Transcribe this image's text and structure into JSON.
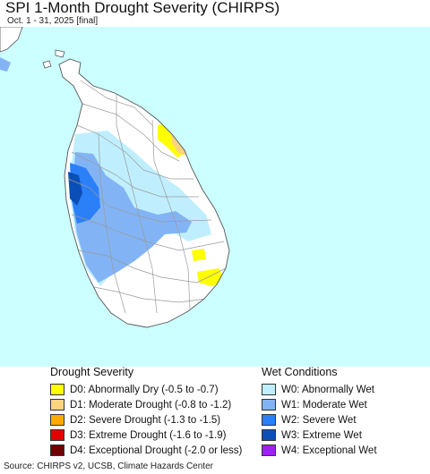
{
  "title": "SPI 1-Month Drought Severity (CHIRPS)",
  "subtitle": "Oct. 1 - 31, 2025 [final]",
  "colors": {
    "ocean": "#ccffff",
    "land": "#ffffff",
    "district_border": "#9a9a9a",
    "coast": "#555555"
  },
  "legend": {
    "drought": {
      "title": "Drought Severity",
      "items": [
        {
          "label": "D0: Abnormally Dry (-0.5 to -0.7)",
          "color": "#ffff00"
        },
        {
          "label": "D1: Moderate Drought (-0.8 to -1.2)",
          "color": "#fcd37f"
        },
        {
          "label": "D2: Severe Drought (-1.3 to -1.5)",
          "color": "#ffaa00"
        },
        {
          "label": "D3: Extreme Drought (-1.6 to -1.9)",
          "color": "#e60000"
        },
        {
          "label": "D4: Exceptional Drought (-2.0 or less)",
          "color": "#730000"
        }
      ]
    },
    "wet": {
      "title": "Wet Conditions",
      "items": [
        {
          "label": "W0: Abnormally Wet",
          "color": "#bfefff"
        },
        {
          "label": "W1: Moderate Wet",
          "color": "#82b4f5"
        },
        {
          "label": "W2: Severe Wet",
          "color": "#2b7ff7"
        },
        {
          "label": "W3: Extreme Wet",
          "color": "#0a4fb8"
        },
        {
          "label": "W4: Exceptional Wet",
          "color": "#a020f0"
        }
      ]
    }
  },
  "source": "Source: CHIRPS v2, UCSB, Climate Hazards Center"
}
